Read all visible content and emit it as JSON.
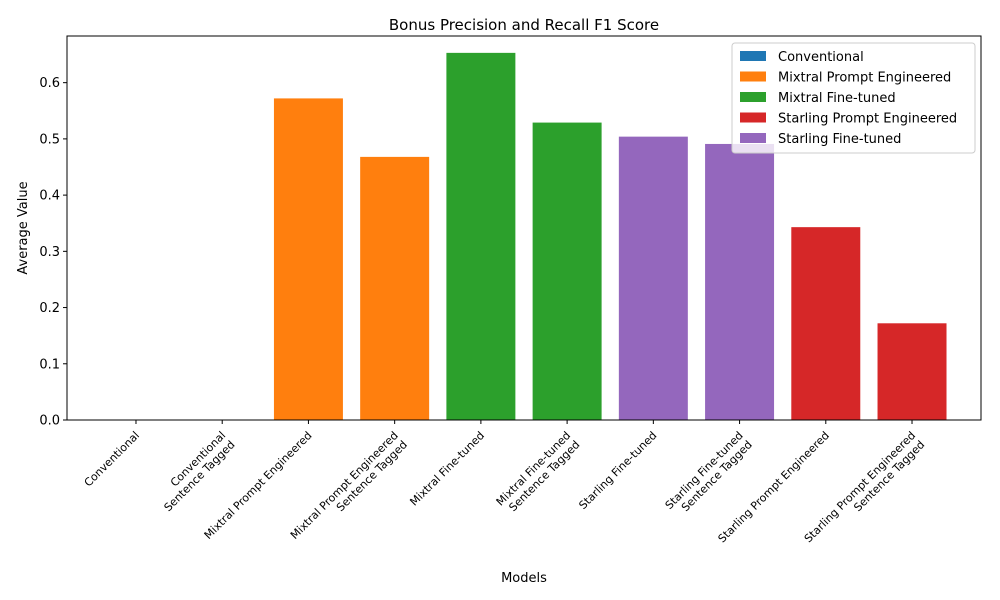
{
  "chart_data": {
    "type": "bar",
    "title": "Bonus Precision and Recall F1 Score",
    "xlabel": "Models",
    "ylabel": "Average Value",
    "ylim": [
      0,
      0.683
    ],
    "yticks": [
      "0.0",
      "0.1",
      "0.2",
      "0.3",
      "0.4",
      "0.5",
      "0.6"
    ],
    "grid": false,
    "legend_position": "top-right",
    "categories": [
      [
        "Conventional"
      ],
      [
        "Conventional",
        "Sentence Tagged"
      ],
      [
        "Mixtral Prompt Engineered"
      ],
      [
        "Mixtral Prompt Engineered",
        "Sentence Tagged"
      ],
      [
        "Mixtral Fine-tuned"
      ],
      [
        "Mixtral Fine-tuned",
        "Sentence Tagged"
      ],
      [
        "Starling Fine-tuned"
      ],
      [
        "Starling Fine-tuned",
        "Sentence Tagged"
      ],
      [
        "Starling Prompt Engineered"
      ],
      [
        "Starling Prompt Engineered",
        "Sentence Tagged"
      ]
    ],
    "values": [
      0.0,
      0.0,
      0.572,
      0.468,
      0.653,
      0.529,
      0.504,
      0.491,
      0.343,
      0.172
    ],
    "bar_series": [
      0,
      0,
      1,
      1,
      2,
      2,
      4,
      4,
      3,
      3
    ],
    "series": [
      {
        "name": "Conventional",
        "color": "#1f77b4"
      },
      {
        "name": "Mixtral Prompt Engineered",
        "color": "#ff7f0e"
      },
      {
        "name": "Mixtral Fine-tuned",
        "color": "#2ca02c"
      },
      {
        "name": "Starling Prompt Engineered",
        "color": "#d62728"
      },
      {
        "name": "Starling Fine-tuned",
        "color": "#9467bd"
      }
    ]
  }
}
